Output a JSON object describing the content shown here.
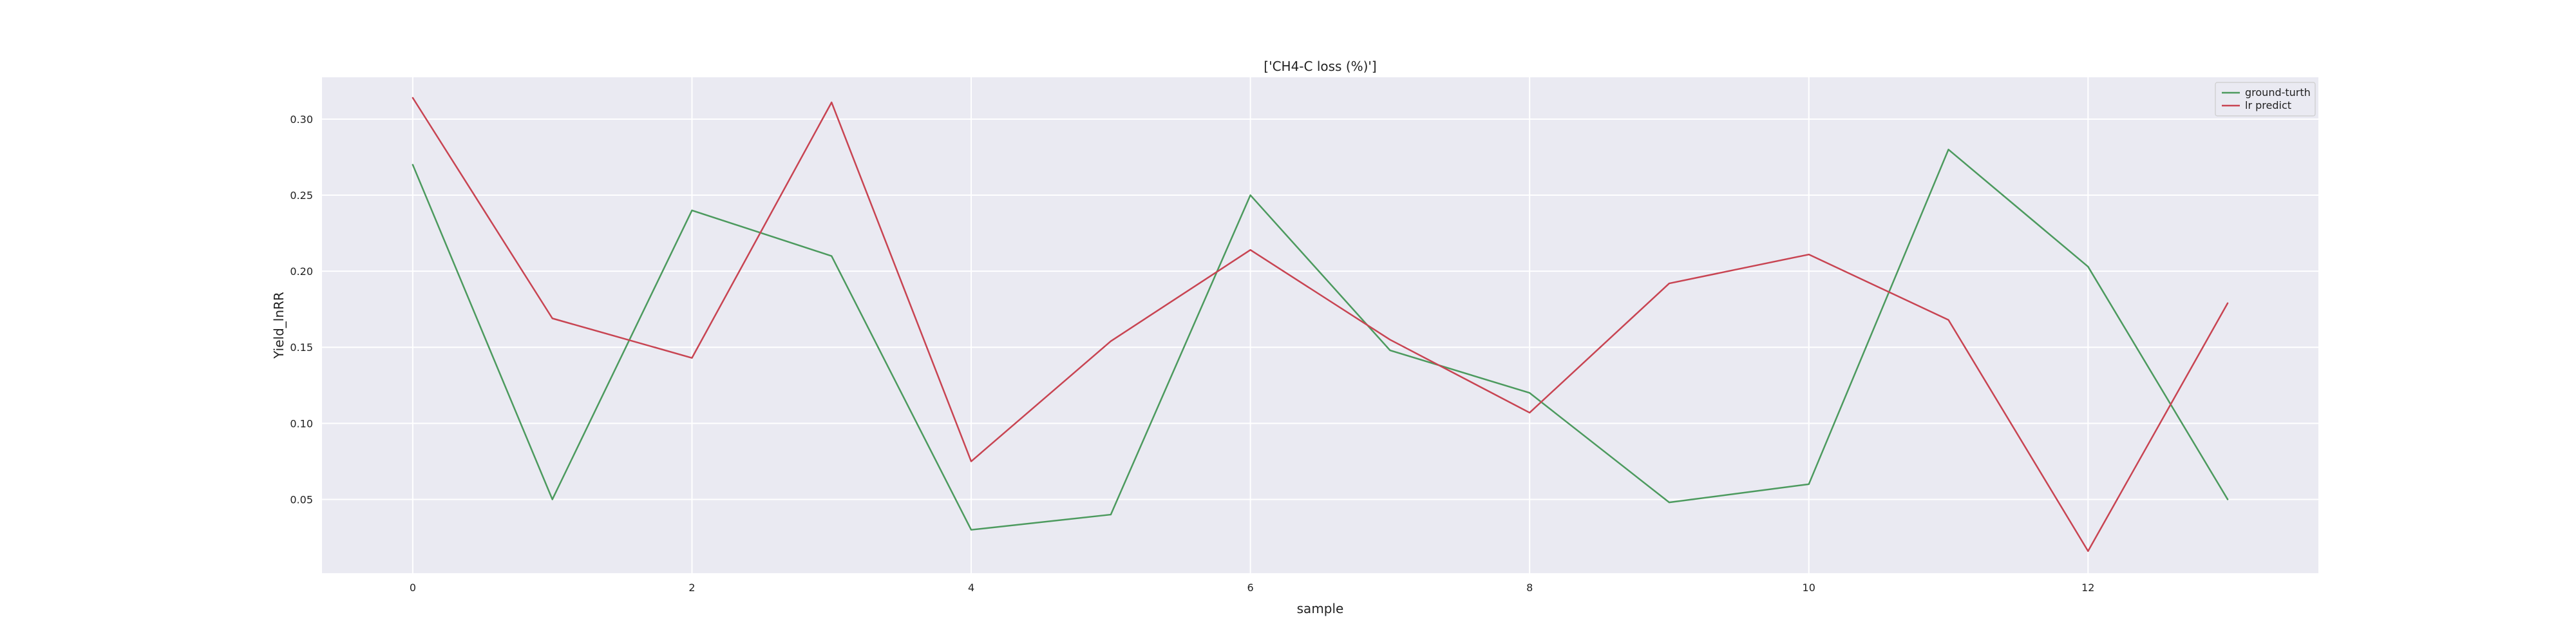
{
  "chart_data": {
    "type": "line",
    "title": "['CH4-C loss (%)']",
    "xlabel": "sample",
    "ylabel": "Yield_lnRR",
    "x": [
      0,
      1,
      2,
      3,
      4,
      5,
      6,
      7,
      8,
      9,
      10,
      11,
      12,
      13
    ],
    "xticks": [
      0,
      2,
      4,
      6,
      8,
      10,
      12
    ],
    "yticks": [
      0.05,
      0.1,
      0.15,
      0.2,
      0.25,
      0.3
    ],
    "xlim": [
      -0.65,
      13.65
    ],
    "ylim": [
      0.0015,
      0.3275
    ],
    "grid": true,
    "legend_position": "top-right",
    "series": [
      {
        "name": "ground-turth",
        "color": "#4C9A5E",
        "values": [
          0.27,
          0.05,
          0.24,
          0.21,
          0.03,
          0.04,
          0.25,
          0.148,
          0.12,
          0.048,
          0.06,
          0.28,
          0.203,
          0.05
        ]
      },
      {
        "name": "lr predict",
        "color": "#C84452",
        "values": [
          0.314,
          0.169,
          0.143,
          0.311,
          0.075,
          0.154,
          0.214,
          0.155,
          0.107,
          0.192,
          0.211,
          0.168,
          0.016,
          0.179
        ]
      }
    ],
    "colors": {
      "plot_background": "#EAEAF2",
      "grid": "#FFFFFF",
      "text": "#222222",
      "legend_background": "#EAEAF2",
      "legend_border": "#CCCCCC"
    }
  }
}
